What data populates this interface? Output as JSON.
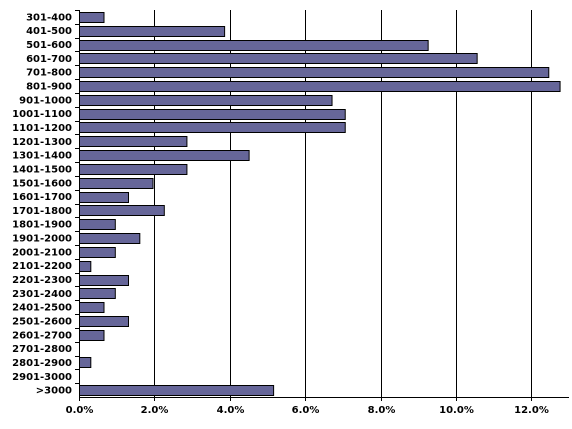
{
  "chart_data": {
    "type": "bar",
    "orientation": "horizontal",
    "title": "",
    "xlabel": "",
    "ylabel": "",
    "categories": [
      "301-400",
      "401-500",
      "501-600",
      "601-700",
      "701-800",
      "801-900",
      "901-1000",
      "1001-1100",
      "1101-1200",
      "1201-1300",
      "1301-1400",
      "1401-1500",
      "1501-1600",
      "1601-1700",
      "1701-1800",
      "1801-1900",
      "1901-2000",
      "2001-2100",
      "2101-2200",
      "2201-2300",
      "2301-2400",
      "2401-2500",
      "2501-2600",
      "2601-2700",
      "2701-2800",
      "2801-2900",
      "2901-3000",
      ">3000"
    ],
    "values": [
      0.65,
      3.85,
      9.25,
      10.55,
      12.45,
      12.75,
      6.7,
      7.05,
      7.05,
      2.85,
      4.5,
      2.85,
      1.95,
      1.3,
      2.25,
      0.95,
      1.6,
      0.95,
      0.3,
      1.3,
      0.95,
      0.65,
      1.3,
      0.65,
      0,
      0.3,
      0,
      5.15
    ],
    "xlim": [
      0,
      13
    ],
    "xticks": [
      0,
      2,
      4,
      6,
      8,
      10,
      12
    ],
    "xtick_labels": [
      "0.0%",
      "2.0%",
      "4.0%",
      "6.0%",
      "8.0%",
      "10.0%",
      "12.0%"
    ],
    "grid": "vertical",
    "legend": "none",
    "bar_color": "#666699",
    "bar_stroke": "#000000"
  }
}
